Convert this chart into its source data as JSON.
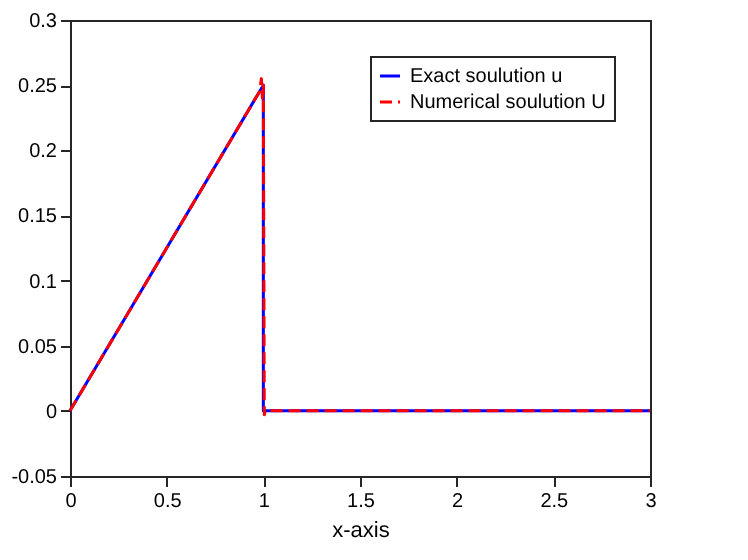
{
  "chart_data": {
    "type": "line",
    "xlabel": "x-axis",
    "xlim": [
      0,
      3
    ],
    "ylim": [
      -0.05,
      0.3
    ],
    "xticks": [
      0,
      0.5,
      1,
      1.5,
      2,
      2.5,
      3
    ],
    "yticks": [
      -0.05,
      0,
      0.05,
      0.1,
      0.15,
      0.2,
      0.25,
      0.3
    ],
    "grid": false,
    "legend": "top right",
    "marker": "none",
    "series": [
      {
        "name": "Exact soulution u",
        "color": "#0000ff",
        "line_style": "solid",
        "x": [
          0,
          1,
          1,
          3
        ],
        "values": [
          0,
          0.25,
          0,
          0
        ]
      },
      {
        "name": "Numerical soulution U",
        "color": "#ff0000",
        "line_style": "dashed",
        "x": [
          0,
          0.98,
          0.99,
          0.995,
          1,
          1.005,
          1.01,
          3
        ],
        "values": [
          0,
          0.245,
          0.255,
          0.24,
          0.25,
          -0.003,
          0,
          0
        ]
      }
    ]
  }
}
